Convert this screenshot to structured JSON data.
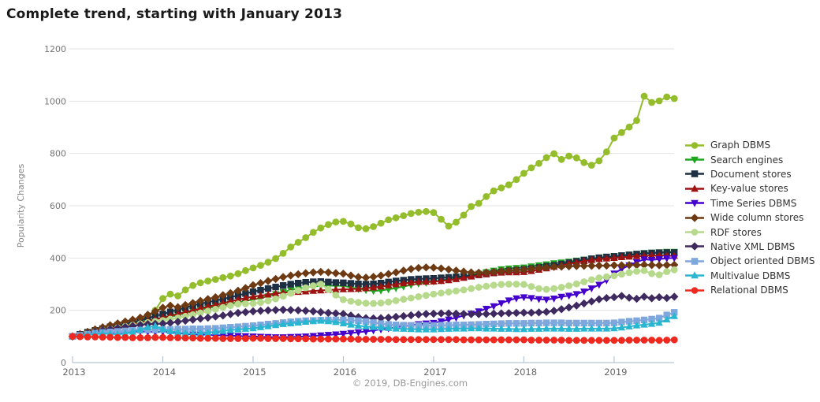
{
  "title": "Complete trend, starting with January 2013",
  "footer": "© 2019, DB-Engines.com",
  "chart_data": {
    "type": "line",
    "title": "Complete trend, starting with January 2013",
    "xlabel": "",
    "ylabel": "Popularity Changes",
    "ylim": [
      0,
      1200
    ],
    "yticks": [
      0,
      200,
      400,
      600,
      800,
      1000,
      1200
    ],
    "xticks": [
      2013,
      2014,
      2015,
      2016,
      2017,
      2018,
      2019
    ],
    "x_start": "2013-01",
    "x_end": "2019-09",
    "x_interval": "monthly",
    "grid": true,
    "legend_position": "right",
    "axis_color": "#b6c6d6",
    "grid_color": "#e2e2e2",
    "series": [
      {
        "name": "Graph DBMS",
        "color": "#94bd2c",
        "marker": "circle",
        "values": [
          100,
          104,
          110,
          117,
          124,
          131,
          139,
          146,
          154,
          163,
          174,
          200,
          245,
          262,
          255,
          278,
          295,
          305,
          312,
          318,
          325,
          331,
          340,
          352,
          362,
          372,
          384,
          398,
          418,
          442,
          460,
          478,
          498,
          515,
          528,
          538,
          540,
          530,
          516,
          512,
          520,
          533,
          546,
          554,
          562,
          570,
          575,
          578,
          574,
          548,
          522,
          537,
          564,
          597,
          609,
          635,
          657,
          668,
          680,
          700,
          724,
          745,
          762,
          784,
          799,
          777,
          790,
          783,
          765,
          755,
          772,
          806,
          859,
          880,
          901,
          926,
          1019,
          995,
          1001,
          1016,
          1010
        ]
      },
      {
        "name": "Search engines",
        "color": "#1ea51e",
        "marker": "triangle-down",
        "values": [
          100,
          107,
          114,
          120,
          127,
          133,
          139,
          145,
          150,
          156,
          161,
          166,
          170,
          176,
          182,
          190,
          197,
          203,
          209,
          214,
          219,
          225,
          231,
          236,
          241,
          247,
          254,
          262,
          270,
          277,
          283,
          288,
          291,
          293,
          294,
          294,
          293,
          288,
          282,
          277,
          274,
          276,
          280,
          285,
          291,
          297,
          302,
          306,
          310,
          314,
          318,
          323,
          328,
          334,
          340,
          346,
          352,
          357,
          360,
          362,
          364,
          368,
          372,
          376,
          380,
          383,
          386,
          390,
          394,
          398,
          401,
          404,
          407,
          410,
          413,
          416,
          419,
          421,
          422,
          424,
          424
        ]
      },
      {
        "name": "Document stores",
        "color": "#1d2f42",
        "marker": "square",
        "values": [
          100,
          108,
          116,
          123,
          130,
          137,
          143,
          149,
          155,
          162,
          170,
          178,
          186,
          194,
          202,
          210,
          218,
          225,
          231,
          237,
          243,
          250,
          257,
          264,
          271,
          277,
          283,
          289,
          295,
          300,
          304,
          307,
          309,
          310,
          308,
          306,
          305,
          303,
          301,
          300,
          301,
          304,
          308,
          312,
          315,
          318,
          320,
          321,
          322,
          324,
          326,
          328,
          330,
          333,
          336,
          339,
          343,
          347,
          351,
          353,
          356,
          360,
          364,
          368,
          372,
          377,
          382,
          387,
          392,
          397,
          401,
          404,
          406,
          409,
          412,
          415,
          417,
          419,
          420,
          421,
          421
        ]
      },
      {
        "name": "Key-value stores",
        "color": "#9e1212",
        "marker": "triangle-up",
        "values": [
          100,
          106,
          112,
          118,
          124,
          130,
          136,
          141,
          147,
          153,
          159,
          165,
          172,
          179,
          186,
          193,
          200,
          207,
          214,
          220,
          227,
          234,
          241,
          247,
          252,
          256,
          260,
          264,
          267,
          269,
          270,
          272,
          274,
          276,
          278,
          279,
          280,
          281,
          282,
          284,
          287,
          291,
          295,
          299,
          303,
          306,
          308,
          309,
          310,
          312,
          315,
          319,
          324,
          329,
          334,
          338,
          342,
          344,
          345,
          345,
          346,
          350,
          355,
          360,
          366,
          372,
          378,
          383,
          388,
          392,
          396,
          398,
          400,
          403,
          405,
          407,
          408,
          409,
          409,
          409,
          408
        ]
      },
      {
        "name": "Time Series DBMS",
        "color": "#4400cc",
        "marker": "triangle-down",
        "values": [
          100,
          104,
          108,
          112,
          115,
          113,
          111,
          114,
          117,
          119,
          118,
          117,
          118,
          116,
          113,
          110,
          108,
          107,
          106,
          105,
          104,
          103,
          102,
          101,
          100,
          99,
          98,
          97,
          97,
          98,
          99,
          100,
          102,
          104,
          106,
          108,
          110,
          113,
          116,
          119,
          123,
          127,
          131,
          135,
          139,
          143,
          147,
          150,
          152,
          158,
          165,
          172,
          180,
          187,
          196,
          206,
          216,
          227,
          238,
          246,
          250,
          247,
          243,
          241,
          245,
          252,
          256,
          262,
          272,
          284,
          298,
          315,
          341,
          358,
          372,
          384,
          395,
          393,
          396,
          399,
          400
        ]
      },
      {
        "name": "Wide column stores",
        "color": "#6d3a13",
        "marker": "diamond",
        "values": [
          100,
          109,
          118,
          127,
          135,
          143,
          150,
          157,
          164,
          172,
          183,
          196,
          210,
          218,
          212,
          220,
          228,
          236,
          243,
          250,
          258,
          266,
          275,
          285,
          296,
          304,
          312,
          320,
          327,
          333,
          338,
          342,
          345,
          347,
          345,
          342,
          340,
          333,
          327,
          325,
          328,
          333,
          339,
          345,
          352,
          358,
          362,
          364,
          363,
          360,
          356,
          352,
          348,
          345,
          344,
          345,
          347,
          350,
          352,
          354,
          356,
          359,
          362,
          364,
          366,
          367,
          368,
          369,
          370,
          370,
          371,
          371,
          372,
          372,
          373,
          373,
          374,
          373,
          372,
          373,
          374
        ]
      },
      {
        "name": "RDF stores",
        "color": "#b7d98b",
        "marker": "circle",
        "values": [
          100,
          105,
          111,
          117,
          123,
          128,
          133,
          138,
          143,
          148,
          153,
          157,
          161,
          166,
          171,
          177,
          183,
          190,
          197,
          204,
          211,
          218,
          224,
          225,
          226,
          230,
          236,
          244,
          254,
          265,
          276,
          286,
          294,
          300,
          280,
          258,
          241,
          235,
          230,
          227,
          226,
          228,
          232,
          237,
          242,
          247,
          252,
          257,
          262,
          266,
          270,
          274,
          278,
          283,
          288,
          292,
          296,
          299,
          300,
          300,
          299,
          291,
          283,
          280,
          283,
          288,
          294,
          301,
          309,
          317,
          324,
          328,
          332,
          338,
          344,
          349,
          352,
          340,
          336,
          348,
          355
        ]
      },
      {
        "name": "Native XML DBMS",
        "color": "#3f2a60",
        "marker": "diamond",
        "values": [
          100,
          106,
          112,
          118,
          124,
          128,
          132,
          136,
          140,
          144,
          147,
          148,
          149,
          152,
          156,
          160,
          164,
          168,
          172,
          176,
          180,
          185,
          190,
          193,
          196,
          198,
          200,
          201,
          202,
          201,
          200,
          198,
          196,
          193,
          190,
          188,
          186,
          180,
          174,
          170,
          169,
          170,
          172,
          175,
          178,
          181,
          184,
          186,
          187,
          188,
          188,
          187,
          186,
          185,
          185,
          186,
          187,
          188,
          189,
          190,
          191,
          191,
          192,
          194,
          198,
          204,
          211,
          218,
          226,
          234,
          242,
          247,
          250,
          255,
          248,
          244,
          252,
          246,
          250,
          247,
          252
        ]
      },
      {
        "name": "Object oriented DBMS",
        "color": "#7ea7dd",
        "marker": "square",
        "values": [
          100,
          104,
          108,
          112,
          115,
          117,
          119,
          121,
          123,
          124,
          125,
          125,
          126,
          127,
          128,
          128,
          129,
          129,
          130,
          131,
          133,
          135,
          137,
          139,
          141,
          144,
          147,
          150,
          153,
          156,
          158,
          160,
          161,
          162,
          163,
          163,
          163,
          162,
          160,
          157,
          153,
          149,
          146,
          144,
          143,
          142,
          142,
          142,
          142,
          143,
          143,
          144,
          144,
          145,
          146,
          147,
          148,
          149,
          150,
          150,
          150,
          151,
          151,
          152,
          152,
          152,
          151,
          151,
          151,
          151,
          151,
          151,
          152,
          155,
          158,
          160,
          163,
          166,
          170,
          182,
          192
        ]
      },
      {
        "name": "Multivalue DBMS",
        "color": "#29b6d0",
        "marker": "triangle-up",
        "values": [
          100,
          103,
          106,
          109,
          112,
          110,
          108,
          111,
          118,
          126,
          135,
          140,
          128,
          120,
          115,
          112,
          110,
          112,
          115,
          118,
          121,
          124,
          127,
          129,
          131,
          135,
          139,
          143,
          147,
          150,
          153,
          156,
          158,
          160,
          158,
          155,
          150,
          145,
          141,
          138,
          136,
          134,
          132,
          130,
          129,
          128,
          127,
          127,
          127,
          128,
          129,
          130,
          130,
          131,
          131,
          130,
          130,
          129,
          129,
          128,
          128,
          129,
          129,
          130,
          130,
          130,
          129,
          129,
          130,
          130,
          130,
          130,
          131,
          134,
          138,
          142,
          145,
          148,
          152,
          165,
          178
        ]
      },
      {
        "name": "Relational DBMS",
        "color": "#ee2920",
        "marker": "circle",
        "values": [
          100,
          99,
          98,
          98,
          97,
          97,
          96,
          96,
          95,
          95,
          95,
          96,
          96,
          95,
          95,
          94,
          94,
          93,
          93,
          93,
          92,
          92,
          92,
          92,
          93,
          93,
          92,
          92,
          92,
          91,
          91,
          91,
          90,
          90,
          90,
          90,
          90,
          90,
          89,
          89,
          89,
          89,
          89,
          88,
          88,
          88,
          88,
          88,
          88,
          88,
          88,
          88,
          87,
          87,
          87,
          87,
          87,
          87,
          87,
          87,
          87,
          86,
          86,
          86,
          86,
          86,
          85,
          85,
          85,
          85,
          85,
          85,
          85,
          85,
          86,
          86,
          86,
          86,
          85,
          86,
          87
        ]
      }
    ]
  }
}
